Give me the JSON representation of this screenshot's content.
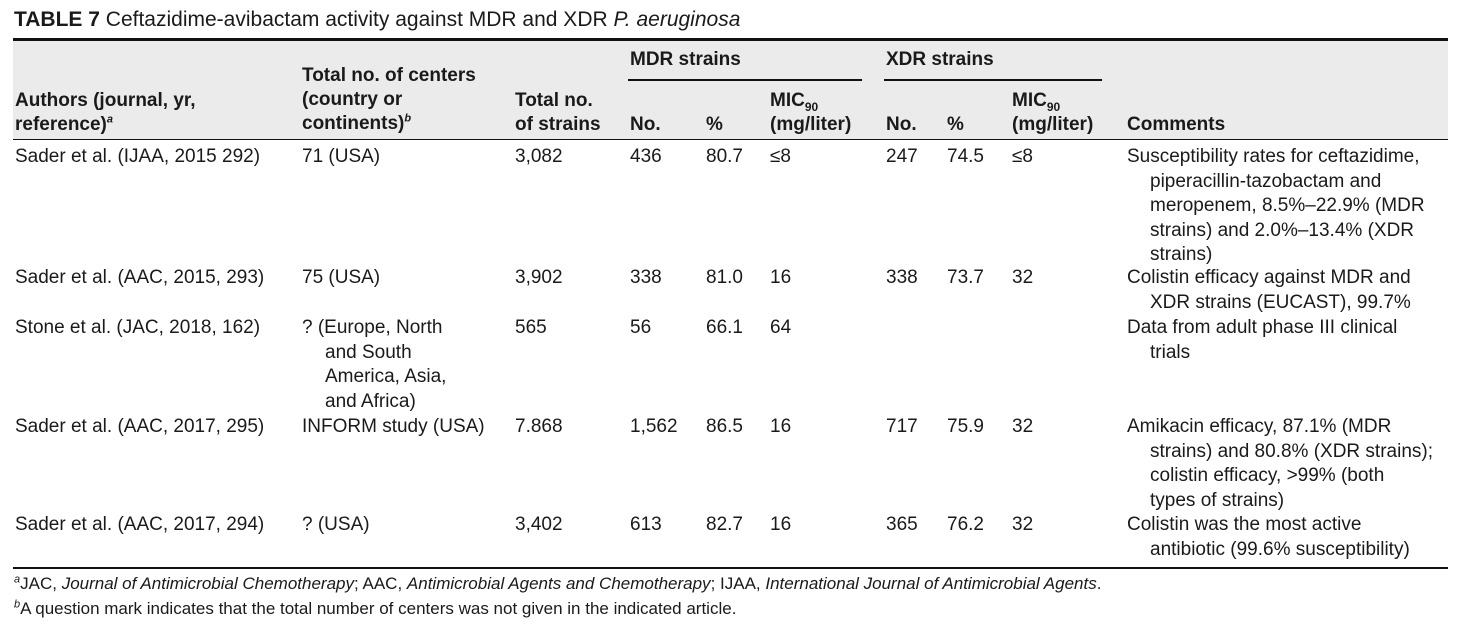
{
  "title": {
    "label": "TABLE 7",
    "text": "Ceftazidime-avibactam activity against MDR and XDR",
    "species": "P. aeruginosa"
  },
  "header": {
    "group_mdr": "MDR strains",
    "group_xdr": "XDR strains",
    "authors_l1": "Authors (journal, yr,",
    "authors_l2": "reference)",
    "authors_mark": "a",
    "centers_l1": "Total no. of centers",
    "centers_l2": "(country or",
    "centers_l3": "continents)",
    "centers_mark": "b",
    "strains_l1": "Total no.",
    "strains_l2": "of strains",
    "no": "No.",
    "pct": "%",
    "mic": "MIC",
    "mic_sub": "90",
    "mic_unit": "(mg/liter)",
    "comments": "Comments"
  },
  "rows": [
    {
      "authors": "Sader et al. (IJAA, 2015 292)",
      "centers": [
        "71 (USA)"
      ],
      "strains": "3,082",
      "mdr_no": "436",
      "mdr_pct": "80.7",
      "mdr_mic": "≤8",
      "xdr_no": "247",
      "xdr_pct": "74.5",
      "xdr_mic": "≤8",
      "comments": [
        "Susceptibility rates for ceftazidime,",
        "piperacillin-tazobactam and",
        "meropenem, 8.5%–22.9% (MDR",
        "strains) and 2.0%–13.4% (XDR",
        "strains)"
      ]
    },
    {
      "authors": "Sader et al. (AAC, 2015, 293)",
      "centers": [
        "75 (USA)"
      ],
      "strains": "3,902",
      "mdr_no": "338",
      "mdr_pct": "81.0",
      "mdr_mic": "16",
      "xdr_no": "338",
      "xdr_pct": "73.7",
      "xdr_mic": "32",
      "comments": [
        "Colistin efficacy against MDR and",
        "XDR strains (EUCAST), 99.7%"
      ]
    },
    {
      "authors": "Stone et al. (JAC, 2018, 162)",
      "centers": [
        "? (Europe, North",
        "and South",
        "America, Asia,",
        "and Africa)"
      ],
      "strains": "565",
      "mdr_no": "56",
      "mdr_pct": "66.1",
      "mdr_mic": "64",
      "xdr_no": "",
      "xdr_pct": "",
      "xdr_mic": "",
      "comments": [
        "Data from adult phase III clinical",
        "trials"
      ]
    },
    {
      "authors": "Sader et al. (AAC, 2017, 295)",
      "centers": [
        "INFORM study (USA)"
      ],
      "strains": "7.868",
      "mdr_no": "1,562",
      "mdr_pct": "86.5",
      "mdr_mic": "16",
      "xdr_no": "717",
      "xdr_pct": "75.9",
      "xdr_mic": "32",
      "comments": [
        "Amikacin efficacy, 87.1% (MDR",
        "strains) and 80.8% (XDR strains);",
        "colistin efficacy, >99% (both",
        "types of strains)"
      ]
    },
    {
      "authors": "Sader et al. (AAC, 2017, 294)",
      "centers": [
        "? (USA)"
      ],
      "strains": "3,402",
      "mdr_no": "613",
      "mdr_pct": "82.7",
      "mdr_mic": "16",
      "xdr_no": "365",
      "xdr_pct": "76.2",
      "xdr_mic": "32",
      "comments": [
        "Colistin was the most active",
        "antibiotic (99.6% susceptibility)"
      ]
    }
  ],
  "footnotes": {
    "a_mark": "a",
    "a_parts": [
      {
        "t": "JAC, ",
        "i": false
      },
      {
        "t": "Journal of Antimicrobial Chemotherapy",
        "i": true
      },
      {
        "t": "; AAC, ",
        "i": false
      },
      {
        "t": "Antimicrobial Agents and Chemotherapy",
        "i": true
      },
      {
        "t": "; IJAA, ",
        "i": false
      },
      {
        "t": "International Journal of Antimicrobial Agents",
        "i": true
      },
      {
        "t": ".",
        "i": false
      }
    ],
    "b_mark": "b",
    "b_text": "A question mark indicates that the total number of centers was not given in the indicated article."
  }
}
